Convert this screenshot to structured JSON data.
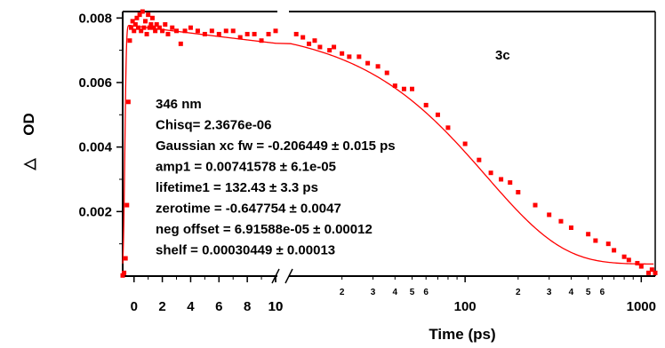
{
  "chart_data": {
    "type": "scatter",
    "panel_label": "3c",
    "xlabel": "Time (ps)",
    "ylabel": "OD",
    "ylabel_symbol": "△",
    "ylim": [
      0,
      0.0082
    ],
    "x_axis": {
      "scale": "split linear-log",
      "linear_segment": {
        "range": [
          -0.8,
          10
        ],
        "ticks": [
          0,
          2,
          4,
          6,
          8,
          10
        ],
        "tick_labels": [
          "0",
          "2",
          "4",
          "6",
          "8",
          "10"
        ]
      },
      "log_segment": {
        "range": [
          10,
          1200
        ],
        "major_ticks": [
          10,
          100,
          1000
        ],
        "major_labels": [
          "10",
          "100",
          "1000"
        ],
        "minor_labels": [
          {
            "x": 20,
            "label": "2"
          },
          {
            "x": 30,
            "label": "3"
          },
          {
            "x": 40,
            "label": "4"
          },
          {
            "x": 50,
            "label": "5"
          },
          {
            "x": 60,
            "label": "6"
          },
          {
            "x": 200,
            "label": "2"
          },
          {
            "x": 300,
            "label": "3"
          },
          {
            "x": 400,
            "label": "4"
          },
          {
            "x": 500,
            "label": "5"
          },
          {
            "x": 600,
            "label": "6"
          }
        ]
      }
    },
    "y_ticks": [
      0.002,
      0.004,
      0.006,
      0.008
    ],
    "y_tick_labels": [
      "0.002",
      "0.004",
      "0.006",
      "0.008"
    ],
    "annotation_lines": [
      "346 nm",
      "Chisq= 2.3676e-06",
      "Gaussian xc fw = -0.206449 ± 0.015 ps",
      "amp1 = 0.00741578 ± 6.1e-05",
      "lifetime1 = 132.43 ± 3.3 ps",
      "zerotime = -0.647754 ± 0.0047",
      "neg offset = 6.91588e-05 ± 0.00012",
      "shelf = 0.00030449 ± 0.00013"
    ],
    "fit_params": {
      "gaussian_fw": -0.206449,
      "amp1": 0.00741578,
      "lifetime1": 132.43,
      "zerotime": -0.647754,
      "neg_offset": 6.91588e-05,
      "shelf": 0.00030449
    },
    "series": [
      {
        "kind": "data",
        "color": "#ff0000",
        "points": [
          [
            -0.8,
            2e-05
          ],
          [
            -0.7,
            0.0001
          ],
          [
            -0.6,
            0.00055
          ],
          [
            -0.5,
            0.0022
          ],
          [
            -0.4,
            0.0054
          ],
          [
            -0.3,
            0.0073
          ],
          [
            -0.2,
            0.0077
          ],
          [
            -0.1,
            0.0079
          ],
          [
            0.0,
            0.0076
          ],
          [
            0.1,
            0.0078
          ],
          [
            0.2,
            0.008
          ],
          [
            0.3,
            0.0077
          ],
          [
            0.4,
            0.0081
          ],
          [
            0.5,
            0.0076
          ],
          [
            0.6,
            0.0082
          ],
          [
            0.7,
            0.0077
          ],
          [
            0.8,
            0.0079
          ],
          [
            0.9,
            0.0075
          ],
          [
            1.0,
            0.0081
          ],
          [
            1.1,
            0.0077
          ],
          [
            1.2,
            0.0078
          ],
          [
            1.3,
            0.008
          ],
          [
            1.4,
            0.0077
          ],
          [
            1.5,
            0.0076
          ],
          [
            1.6,
            0.0078
          ],
          [
            1.8,
            0.0077
          ],
          [
            2.0,
            0.0076
          ],
          [
            2.2,
            0.0078
          ],
          [
            2.4,
            0.0075
          ],
          [
            2.7,
            0.0077
          ],
          [
            3.0,
            0.0076
          ],
          [
            3.3,
            0.0072
          ],
          [
            3.6,
            0.0076
          ],
          [
            4.0,
            0.0077
          ],
          [
            4.5,
            0.0076
          ],
          [
            5.0,
            0.0075
          ],
          [
            5.5,
            0.0076
          ],
          [
            6.0,
            0.0075
          ],
          [
            6.5,
            0.0076
          ],
          [
            7.0,
            0.0076
          ],
          [
            7.5,
            0.0074
          ],
          [
            8.0,
            0.0075
          ],
          [
            8.5,
            0.0075
          ],
          [
            9.0,
            0.0073
          ],
          [
            9.5,
            0.0075
          ],
          [
            10.0,
            0.0076
          ],
          [
            11,
            0.0075
          ],
          [
            12,
            0.0074
          ],
          [
            13,
            0.0072
          ],
          [
            14,
            0.0073
          ],
          [
            15,
            0.0071
          ],
          [
            17,
            0.007
          ],
          [
            18,
            0.0071
          ],
          [
            20,
            0.0069
          ],
          [
            22,
            0.0068
          ],
          [
            25,
            0.0068
          ],
          [
            28,
            0.0066
          ],
          [
            32,
            0.0065
          ],
          [
            36,
            0.0063
          ],
          [
            40,
            0.0059
          ],
          [
            45,
            0.0058
          ],
          [
            50,
            0.0058
          ],
          [
            60,
            0.0053
          ],
          [
            70,
            0.005
          ],
          [
            80,
            0.0046
          ],
          [
            100,
            0.0041
          ],
          [
            120,
            0.0036
          ],
          [
            140,
            0.0032
          ],
          [
            160,
            0.003
          ],
          [
            180,
            0.0029
          ],
          [
            200,
            0.0026
          ],
          [
            250,
            0.0022
          ],
          [
            300,
            0.0019
          ],
          [
            350,
            0.0017
          ],
          [
            400,
            0.0015
          ],
          [
            500,
            0.0013
          ],
          [
            550,
            0.0011
          ],
          [
            650,
            0.001
          ],
          [
            700,
            0.0008
          ],
          [
            800,
            0.0006
          ],
          [
            850,
            0.0005
          ],
          [
            950,
            0.0004
          ],
          [
            1000,
            0.0003
          ],
          [
            1100,
            0.0001
          ],
          [
            1150,
            0.0002
          ],
          [
            1200,
            0.0001
          ]
        ]
      },
      {
        "kind": "fit",
        "color": "#ff0000"
      }
    ]
  }
}
